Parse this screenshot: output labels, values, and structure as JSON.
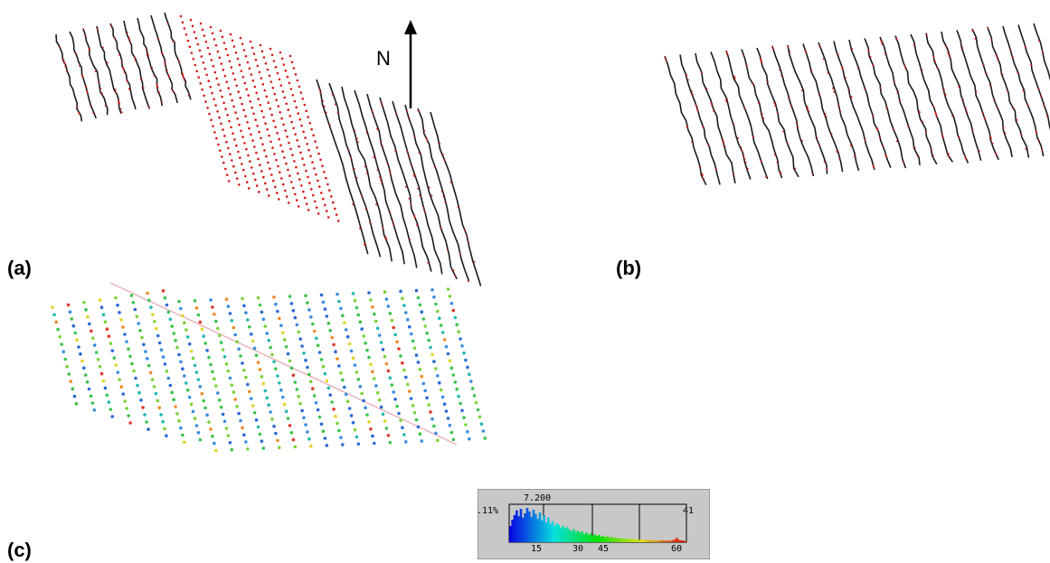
{
  "labels": {
    "a": "(a)",
    "b": "(b)",
    "c": "(c)"
  },
  "north_label": "N",
  "histogram": {
    "left_label": ".11%",
    "right_label": "41",
    "peak_value": "7.200",
    "tick_labels": [
      "15",
      "30",
      "45",
      "60"
    ],
    "bin_heights": [
      0.45,
      0.62,
      0.75,
      0.88,
      0.72,
      0.92,
      0.68,
      0.8,
      0.95,
      0.85,
      0.7,
      0.9,
      0.78,
      0.65,
      0.82,
      0.6,
      0.74,
      0.55,
      0.68,
      0.5,
      0.58,
      0.45,
      0.52,
      0.48,
      0.4,
      0.46,
      0.38,
      0.42,
      0.35,
      0.3,
      0.36,
      0.28,
      0.32,
      0.26,
      0.3,
      0.22,
      0.27,
      0.2,
      0.24,
      0.18,
      0.22,
      0.17,
      0.2,
      0.15,
      0.18,
      0.14,
      0.16,
      0.12,
      0.15,
      0.11,
      0.13,
      0.1,
      0.12,
      0.09,
      0.11,
      0.08,
      0.1,
      0.08,
      0.09,
      0.07,
      0.08,
      0.06,
      0.08,
      0.05,
      0.07,
      0.06,
      0.05,
      0.06,
      0.05,
      0.04,
      0.05,
      0.04,
      0.06,
      0.05,
      0.04,
      0.05,
      0.04,
      0.06,
      0.08,
      0.12,
      0.06,
      0.05,
      0.04,
      0.03
    ]
  },
  "colors": {
    "swath_line": "#1a1a1a",
    "survey_point": "#d11a1a",
    "profile_line": "#e8b4b8",
    "histogram_bg": "#c8c8c8"
  }
}
